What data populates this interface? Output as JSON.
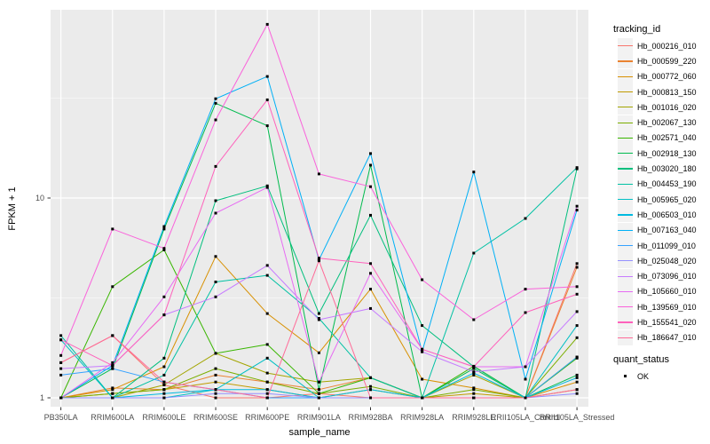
{
  "chart_data": {
    "type": "line",
    "xlabel": "sample_name",
    "ylabel": "FPKM + 1",
    "y_scale": "log10",
    "y_ticks": [
      {
        "value": 1,
        "label": "1"
      },
      {
        "value": 10,
        "label": "10"
      }
    ],
    "y_minor": [
      3.162,
      31.62
    ],
    "ylim": [
      1,
      87
    ],
    "grid": "on",
    "legend_position": "right",
    "legend_title": "tracking_id",
    "point_legend": {
      "title": "quant_status",
      "items": [
        {
          "label": "OK",
          "shape": "square",
          "color": "#000000"
        }
      ]
    },
    "categories": [
      "PB350LA",
      "RRIM600LA",
      "RRIM600LE",
      "RRIM600SE",
      "RRIM600PE",
      "RRIM901LA",
      "RRIM928BA",
      "RRIM928LA",
      "RRIM928LE",
      "RRII105LA_Control",
      "RRII105LA_Stressed"
    ],
    "series": [
      {
        "name": "Hb_000216_010",
        "color": "#F8766D",
        "values": [
          1.5,
          2.05,
          1.16,
          1.0,
          1.0,
          1.05,
          1.0,
          1.0,
          1.0,
          1.0,
          4.7
        ]
      },
      {
        "name": "Hb_000599_220",
        "color": "#EA8331",
        "values": [
          1.0,
          1.12,
          1.1,
          1.3,
          1.2,
          1.1,
          1.26,
          1.0,
          1.0,
          1.0,
          4.5
        ]
      },
      {
        "name": "Hb_000772_060",
        "color": "#D89000",
        "values": [
          1.0,
          1.1,
          1.43,
          5.1,
          2.64,
          1.68,
          3.5,
          1.24,
          1.12,
          1.0,
          1.2
        ]
      },
      {
        "name": "Hb_000813_150",
        "color": "#C09B00",
        "values": [
          1.0,
          1.05,
          1.1,
          1.2,
          1.1,
          1.0,
          1.1,
          1.0,
          1.05,
          1.0,
          1.1
        ]
      },
      {
        "name": "Hb_001016_020",
        "color": "#A3A500",
        "values": [
          1.0,
          1.0,
          1.16,
          1.67,
          1.33,
          1.2,
          1.26,
          1.0,
          1.3,
          1.0,
          1.6
        ]
      },
      {
        "name": "Hb_002067_130",
        "color": "#7CAE00",
        "values": [
          1.0,
          1.05,
          1.1,
          1.4,
          1.2,
          1.05,
          1.14,
          1.0,
          1.1,
          1.0,
          2.0
        ]
      },
      {
        "name": "Hb_002571_040",
        "color": "#39B600",
        "values": [
          1.0,
          3.6,
          5.5,
          1.67,
          1.85,
          1.05,
          1.26,
          1.0,
          1.44,
          1.0,
          1.58
        ]
      },
      {
        "name": "Hb_002918_130",
        "color": "#00BB4E",
        "values": [
          1.0,
          1.4,
          7.0,
          29.8,
          23.0,
          1.1,
          14.6,
          1.0,
          1.4,
          1.0,
          1.3
        ]
      },
      {
        "name": "Hb_003020_180",
        "color": "#00BF7D",
        "values": [
          1.0,
          1.0,
          1.58,
          9.7,
          11.5,
          2.64,
          8.2,
          2.3,
          1.43,
          1.0,
          14.0
        ]
      },
      {
        "name": "Hb_004453_190",
        "color": "#00C1A3",
        "values": [
          2.05,
          1.0,
          1.3,
          3.8,
          4.1,
          2.5,
          1.26,
          1.0,
          5.3,
          7.9,
          14.2
        ]
      },
      {
        "name": "Hb_005965_020",
        "color": "#00BFC4",
        "values": [
          1.95,
          1.0,
          1.0,
          1.1,
          1.58,
          1.0,
          1.0,
          1.0,
          1.0,
          1.0,
          2.3
        ]
      },
      {
        "name": "Hb_006503_010",
        "color": "#00BAE0",
        "values": [
          1.0,
          1.0,
          1.05,
          1.1,
          1.1,
          1.0,
          1.1,
          1.0,
          1.33,
          1.0,
          1.26
        ]
      },
      {
        "name": "Hb_007163_040",
        "color": "#00B0F6",
        "values": [
          1.0,
          1.45,
          7.2,
          31.4,
          40.6,
          4.9,
          16.7,
          1.7,
          13.5,
          1.24,
          8.7
        ]
      },
      {
        "name": "Hb_011099_010",
        "color": "#35A2FF",
        "values": [
          1.3,
          1.4,
          1.2,
          1.1,
          1.0,
          1.0,
          1.0,
          1.0,
          1.0,
          1.0,
          1.6
        ]
      },
      {
        "name": "Hb_025048_020",
        "color": "#9590FF",
        "values": [
          1.0,
          1.0,
          1.0,
          1.05,
          1.05,
          1.0,
          1.0,
          1.0,
          1.0,
          1.0,
          1.05
        ]
      },
      {
        "name": "Hb_073096_010",
        "color": "#C77CFF",
        "values": [
          1.4,
          1.45,
          2.6,
          3.2,
          4.6,
          2.46,
          2.8,
          1.7,
          1.35,
          1.43,
          2.7
        ]
      },
      {
        "name": "Hb_105660_010",
        "color": "#E76BF3",
        "values": [
          1.0,
          1.5,
          3.2,
          8.4,
          11.3,
          1.2,
          4.2,
          1.75,
          1.43,
          1.43,
          9.1
        ]
      },
      {
        "name": "Hb_139569_010",
        "color": "#FA62DB",
        "values": [
          1.63,
          7.0,
          5.6,
          24.6,
          74.0,
          13.2,
          11.4,
          3.9,
          2.46,
          3.5,
          3.6
        ]
      },
      {
        "name": "Hb_155541_020",
        "color": "#FF62BC",
        "values": [
          1.95,
          1.45,
          2.6,
          14.4,
          31.0,
          5.0,
          4.7,
          1.75,
          1.43,
          2.67,
          3.3
        ]
      },
      {
        "name": "Hb_186647_010",
        "color": "#FF6A98",
        "values": [
          1.5,
          2.05,
          1.2,
          1.1,
          1.0,
          4.85,
          1.0,
          1.0,
          1.0,
          1.0,
          1.1
        ]
      }
    ],
    "colors": {
      "panel_background": "#EBEBEB",
      "gridline": "#FFFFFF",
      "tick_mark": "#333333",
      "axis_text": "#4D4D4D",
      "title_text": "#000000",
      "point": "#000000",
      "legend_key_background": "#F2F2F2"
    }
  }
}
